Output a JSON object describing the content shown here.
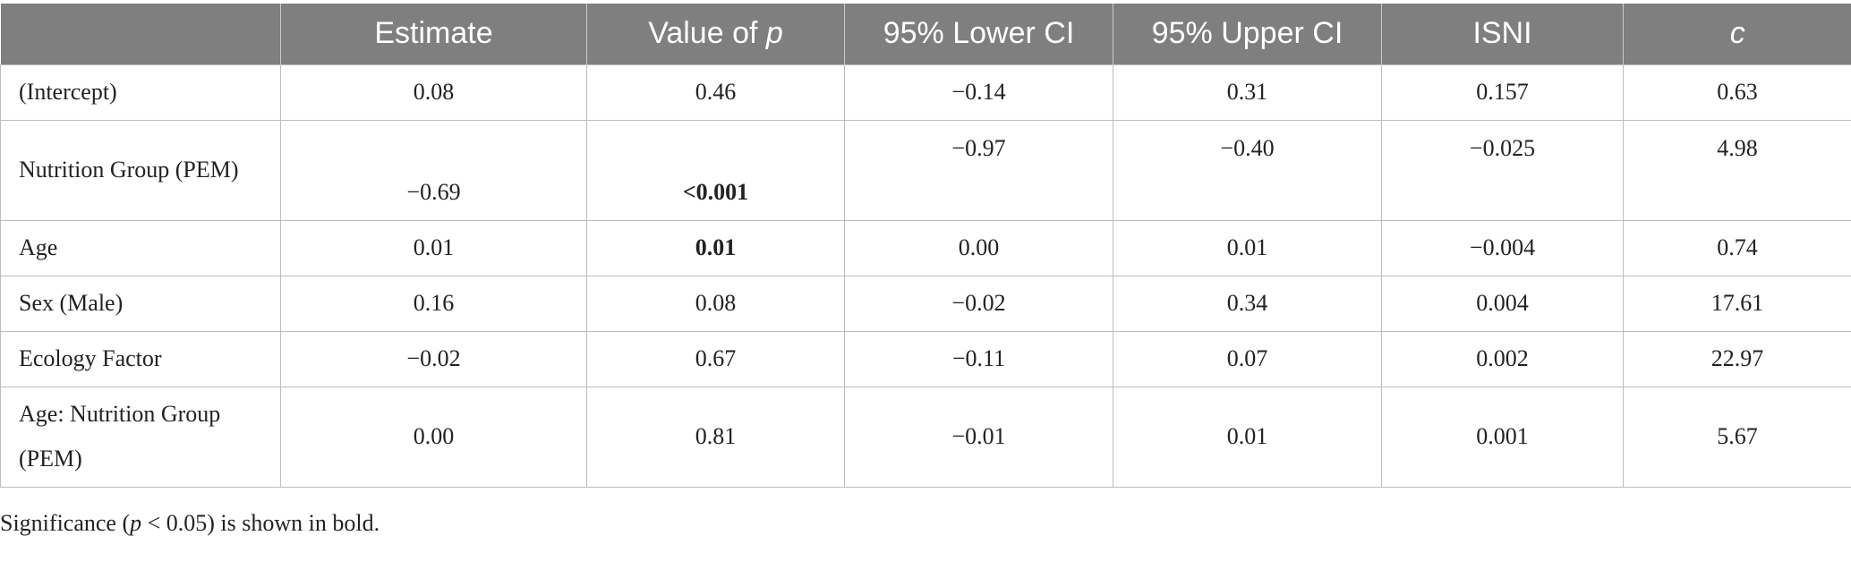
{
  "headers": [
    "",
    "Estimate",
    "Value of ",
    "p",
    "95% Lower CI",
    "95% Upper CI",
    "ISNI",
    "c"
  ],
  "rows": [
    {
      "label": "(Intercept)",
      "estimate": "0.08",
      "p": "0.46",
      "lower": "−0.14",
      "upper": "0.31",
      "isni": "0.157",
      "c": "0.63"
    },
    {
      "label": "Nutrition Group (PEM)",
      "estimate": "−0.69",
      "p": "<0.001",
      "lower": "−0.97",
      "upper": "−0.40",
      "isni": "−0.025",
      "c": "4.98"
    },
    {
      "label": "Age",
      "estimate": "0.01",
      "p": "0.01",
      "lower": "0.00",
      "upper": "0.01",
      "isni": "−0.004",
      "c": "0.74"
    },
    {
      "label": "Sex (Male)",
      "estimate": "0.16",
      "p": "0.08",
      "lower": "−0.02",
      "upper": "0.34",
      "isni": "0.004",
      "c": "17.61"
    },
    {
      "label": "Ecology Factor",
      "estimate": "−0.02",
      "p": "0.67",
      "lower": "−0.11",
      "upper": "0.07",
      "isni": "0.002",
      "c": "22.97"
    },
    {
      "label": "Age: Nutrition Group (PEM)",
      "estimate": "0.00",
      "p": "0.81",
      "lower": "−0.01",
      "upper": "0.01",
      "isni": "0.001",
      "c": "5.67"
    }
  ],
  "footnote": {
    "prefix": "Significance (",
    "p_symbol": "p",
    "suffix": " < 0.05) is shown in bold."
  }
}
